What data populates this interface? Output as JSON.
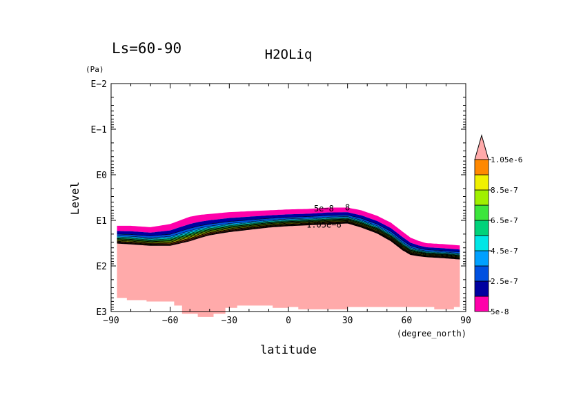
{
  "chart_data": {
    "type": "contour",
    "title": "H2OLiq",
    "period_label": "Ls=60-90",
    "xlabel": "latitude",
    "x_units": "(degree_north)",
    "ylabel": "Level",
    "y_units": "(Pa)",
    "xlim": [
      -90,
      90
    ],
    "ylim_log10_pa": [
      -2,
      3
    ],
    "y_scale": "log, increasing downward",
    "x_ticks": [
      -90,
      -60,
      -30,
      0,
      30,
      60,
      90
    ],
    "x_tick_labels": [
      "−90",
      "−60",
      "−30",
      "0",
      "30",
      "60",
      "90"
    ],
    "y_ticks_log10": [
      -2,
      -1,
      0,
      1,
      2,
      3
    ],
    "y_tick_labels": [
      "E−2",
      "E−1",
      "E0",
      "E1",
      "E2",
      "E3"
    ],
    "colorbar": {
      "levels": [
        5e-08,
        1.5e-07,
        2.5e-07,
        3.5e-07,
        4.5e-07,
        5.5e-07,
        6.5e-07,
        7.5e-07,
        8.5e-07,
        9.5e-07,
        1.05e-06
      ],
      "colors": [
        "#ff00aa",
        "#0000a0",
        "#0050e0",
        "#00a0ff",
        "#00e6e6",
        "#00d27a",
        "#3ce63c",
        "#a0f000",
        "#f0f000",
        "#ff8800",
        "#ff4020",
        "#ff5060",
        "#ffaaaa"
      ],
      "labels": [
        "5e-8",
        "2.5e-7",
        "4.5e-7",
        "6.5e-7",
        "8.5e-7",
        "1.05e-6"
      ],
      "label_level_index": [
        0,
        2,
        4,
        6,
        8,
        10
      ],
      "arrow_color": "#ffaaaa"
    },
    "cloud_top_log10": {
      "lat": [
        -87,
        -80,
        -70,
        -60,
        -55,
        -50,
        -45,
        -40,
        -30,
        -20,
        -10,
        0,
        10,
        20,
        30,
        37,
        45,
        52,
        58,
        62,
        66,
        70,
        78,
        87
      ],
      "log10": [
        1.12,
        1.12,
        1.15,
        1.08,
        1.0,
        0.92,
        0.88,
        0.86,
        0.82,
        0.8,
        0.78,
        0.76,
        0.75,
        0.72,
        0.72,
        0.78,
        0.9,
        1.05,
        1.25,
        1.38,
        1.45,
        1.5,
        1.52,
        1.55
      ]
    },
    "cloud_base_log10": {
      "lat": [
        -87,
        -80,
        -70,
        -60,
        -55,
        -50,
        -45,
        -40,
        -30,
        -20,
        -10,
        0,
        10,
        20,
        30,
        37,
        45,
        52,
        58,
        62,
        66,
        70,
        78,
        87
      ],
      "log10": [
        1.5,
        1.52,
        1.55,
        1.55,
        1.5,
        1.45,
        1.38,
        1.32,
        1.25,
        1.2,
        1.15,
        1.12,
        1.1,
        1.08,
        1.06,
        1.15,
        1.28,
        1.45,
        1.65,
        1.75,
        1.78,
        1.8,
        1.82,
        1.85
      ]
    },
    "topography_mask_bottom_log10": {
      "lat": [
        -87,
        -82,
        -82,
        -72,
        -72,
        -58,
        -58,
        -54,
        -54,
        -46,
        -46,
        -38,
        -38,
        -32,
        -32,
        -26,
        -26,
        -8,
        -8,
        0,
        0,
        5,
        5,
        30,
        30,
        74,
        74,
        84,
        84,
        87
      ],
      "log10": [
        2.7,
        2.7,
        2.75,
        2.75,
        2.78,
        2.78,
        2.87,
        2.87,
        3.05,
        3.05,
        3.12,
        3.12,
        3.05,
        3.05,
        2.92,
        2.92,
        2.87,
        2.87,
        2.92,
        2.92,
        2.9,
        2.9,
        2.95,
        2.95,
        2.9,
        2.9,
        2.95,
        2.95,
        2.9,
        2.9
      ]
    },
    "contour_labels": [
      {
        "text": "5e−8",
        "lat": 18,
        "log10": 0.74
      },
      {
        "text": "8",
        "lat": 30,
        "log10": 0.72
      },
      {
        "text": "1.05e−6",
        "lat": 18,
        "log10": 1.1
      }
    ]
  }
}
